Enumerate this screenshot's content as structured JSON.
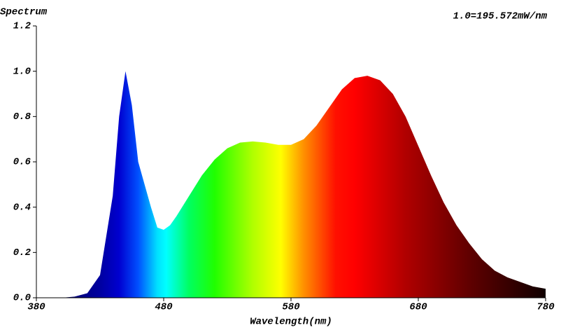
{
  "chart_data": {
    "type": "area",
    "title": "Spectrum",
    "annotation": "1.0=195.572mW/nm",
    "x_label": "Wavelength(nm)",
    "x": [
      380,
      400,
      410,
      420,
      430,
      440,
      445,
      450,
      455,
      460,
      465,
      470,
      475,
      480,
      485,
      490,
      500,
      510,
      520,
      530,
      540,
      550,
      560,
      570,
      580,
      590,
      600,
      610,
      620,
      630,
      640,
      650,
      660,
      670,
      680,
      690,
      700,
      710,
      720,
      730,
      740,
      750,
      760,
      770,
      780
    ],
    "values": [
      0.0,
      0.0,
      0.005,
      0.02,
      0.1,
      0.45,
      0.8,
      1.0,
      0.85,
      0.6,
      0.5,
      0.4,
      0.31,
      0.3,
      0.32,
      0.36,
      0.45,
      0.54,
      0.61,
      0.66,
      0.685,
      0.69,
      0.685,
      0.675,
      0.675,
      0.7,
      0.76,
      0.84,
      0.92,
      0.97,
      0.98,
      0.96,
      0.9,
      0.8,
      0.67,
      0.54,
      0.42,
      0.32,
      0.24,
      0.17,
      0.12,
      0.09,
      0.07,
      0.05,
      0.04
    ],
    "fill_stops": [
      {
        "x": 380,
        "color": "#000040"
      },
      {
        "x": 430,
        "color": "#0000a0"
      },
      {
        "x": 445,
        "color": "#0000d0"
      },
      {
        "x": 460,
        "color": "#0050ff"
      },
      {
        "x": 475,
        "color": "#00e0ff"
      },
      {
        "x": 482,
        "color": "#00ffff"
      },
      {
        "x": 500,
        "color": "#00ff60"
      },
      {
        "x": 520,
        "color": "#20ff00"
      },
      {
        "x": 550,
        "color": "#b0ff00"
      },
      {
        "x": 572,
        "color": "#ffff00"
      },
      {
        "x": 590,
        "color": "#ff9000"
      },
      {
        "x": 615,
        "color": "#ff1000"
      },
      {
        "x": 630,
        "color": "#ff0000"
      },
      {
        "x": 670,
        "color": "#b00000"
      },
      {
        "x": 720,
        "color": "#600000"
      },
      {
        "x": 780,
        "color": "#100000"
      }
    ],
    "xlim": [
      380,
      780
    ],
    "xticks": [
      380,
      480,
      580,
      680,
      780
    ],
    "ylim": [
      0,
      1.2
    ],
    "yticks": [
      {
        "value": 0,
        "label": "0.0"
      },
      0.2,
      0.4,
      0.6,
      0.8,
      {
        "value": 1,
        "label": "1.0"
      },
      1.2
    ]
  }
}
